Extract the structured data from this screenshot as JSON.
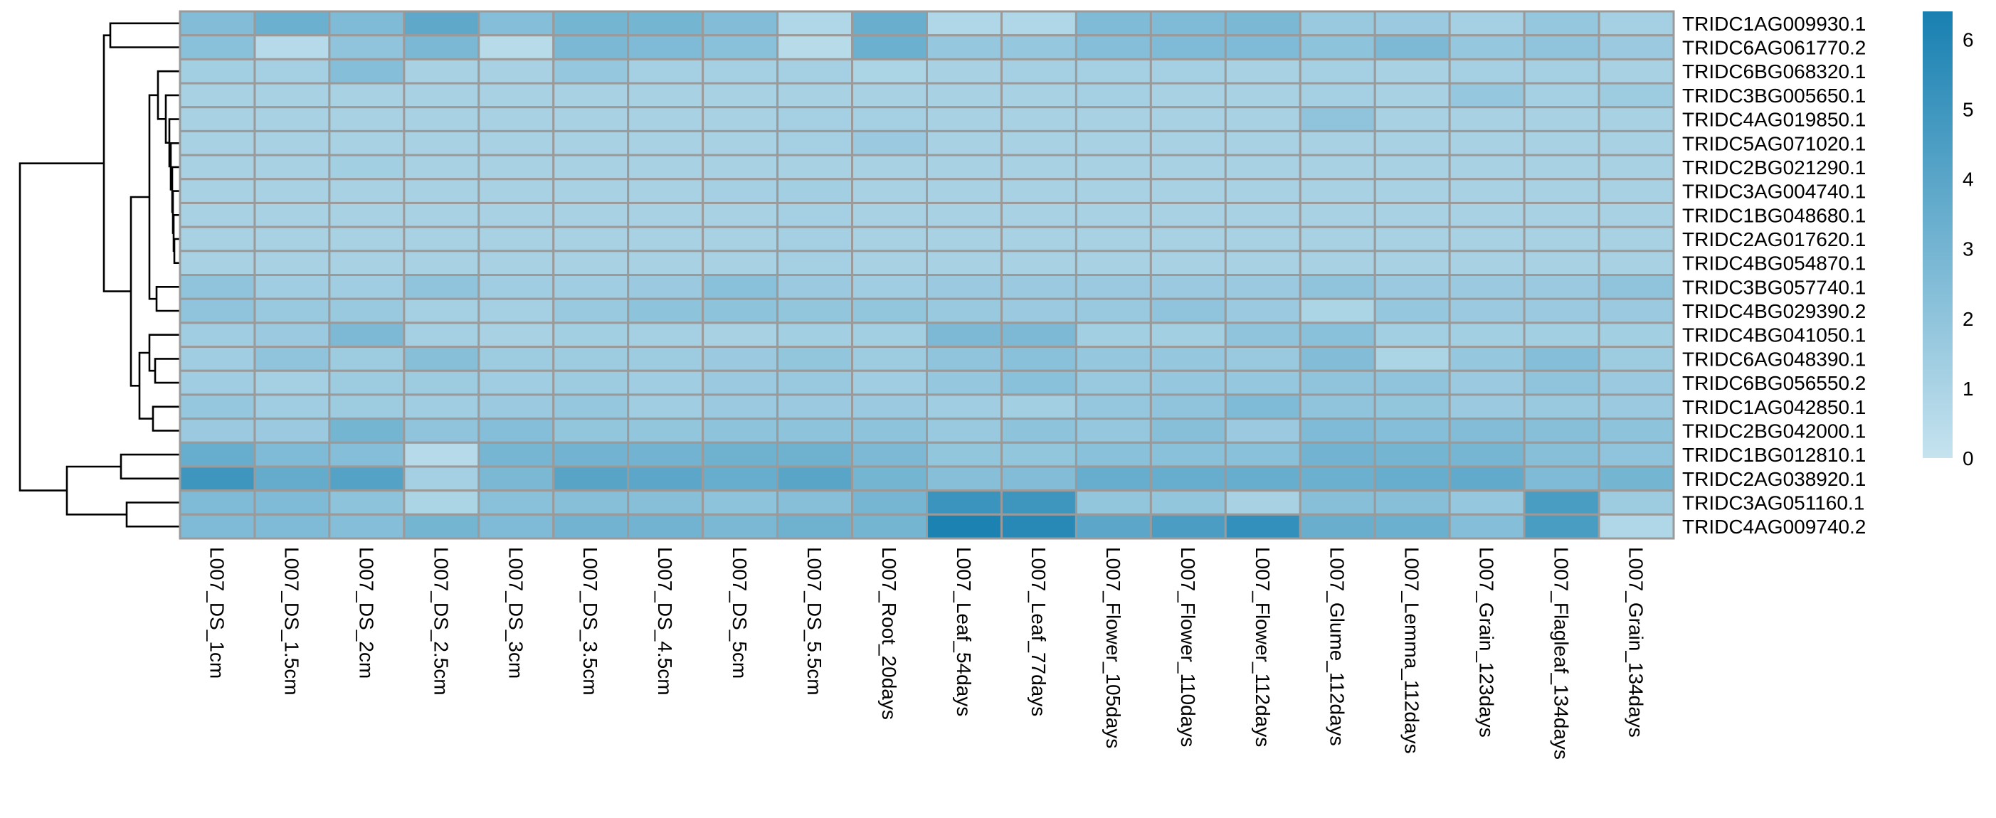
{
  "chart_data": {
    "type": "heatmap",
    "title": "",
    "xlabel": "",
    "ylabel": "",
    "colorscale": {
      "min": 0,
      "max": 6.4,
      "low": "#c6e3ef",
      "high": "#1880b1",
      "ticks": [
        0,
        1,
        2,
        3,
        4,
        5,
        6
      ]
    },
    "rows": [
      "TRIDC1AG009930.1",
      "TRIDC6AG061770.2",
      "TRIDC6BG068320.1",
      "TRIDC3BG005650.1",
      "TRIDC4AG019850.1",
      "TRIDC5AG071020.1",
      "TRIDC2BG021290.1",
      "TRIDC3AG004740.1",
      "TRIDC1BG048680.1",
      "TRIDC2AG017620.1",
      "TRIDC4BG054870.1",
      "TRIDC3BG057740.1",
      "TRIDC4BG029390.2",
      "TRIDC4BG041050.1",
      "TRIDC6AG048390.1",
      "TRIDC6BG056550.2",
      "TRIDC1AG042850.1",
      "TRIDC2BG042000.1",
      "TRIDC1BG012810.1",
      "TRIDC2AG038920.1",
      "TRIDC3AG051160.1",
      "TRIDC4AG009740.2"
    ],
    "columns": [
      "L007_DS_1cm",
      "L007_DS_1.5cm",
      "L007_DS_2cm",
      "L007_DS_2.5cm",
      "L007_DS_3cm",
      "L007_DS_3.5cm",
      "L007_DS_4.5cm",
      "L007_DS_5cm",
      "L007_DS_5.5cm",
      "L007_Root_20days",
      "L007_Leaf_54days",
      "L007_Leaf_77days",
      "L007_Flower_105days",
      "L007_Flower_110days",
      "L007_Flower_112days",
      "L007_Glume_112days",
      "L007_Lemma_112days",
      "L007_Grain_123days",
      "L007_Flagleaf_134days",
      "L007_Grain_134days"
    ],
    "values": [
      [
        2.5,
        3.3,
        2.6,
        3.8,
        2.4,
        3.0,
        3.0,
        2.5,
        0.8,
        3.4,
        0.8,
        0.8,
        2.6,
        2.6,
        2.8,
        1.7,
        1.6,
        1.2,
        1.8,
        1.2
      ],
      [
        2.2,
        0.6,
        2.0,
        2.8,
        0.5,
        2.8,
        2.6,
        2.2,
        0.5,
        3.3,
        1.8,
        1.8,
        2.4,
        2.6,
        2.6,
        2.1,
        2.7,
        1.8,
        2.0,
        1.6
      ],
      [
        1.3,
        1.2,
        2.4,
        1.1,
        1.1,
        1.8,
        1.2,
        1.2,
        1.2,
        1.0,
        1.1,
        1.2,
        1.2,
        1.2,
        1.1,
        1.2,
        1.1,
        1.2,
        1.2,
        1.1
      ],
      [
        1.1,
        1.1,
        1.1,
        1.1,
        1.1,
        1.1,
        1.1,
        1.1,
        1.1,
        1.1,
        1.1,
        1.1,
        1.2,
        1.1,
        1.1,
        1.2,
        1.1,
        1.8,
        1.2,
        1.5
      ],
      [
        1.1,
        1.1,
        1.1,
        1.1,
        1.1,
        1.1,
        1.1,
        1.1,
        1.2,
        1.2,
        1.1,
        1.1,
        1.1,
        1.1,
        1.1,
        2.0,
        1.1,
        1.1,
        1.1,
        1.1
      ],
      [
        1.1,
        1.1,
        1.1,
        1.1,
        1.1,
        1.1,
        1.1,
        1.1,
        1.2,
        1.6,
        1.1,
        1.1,
        1.1,
        1.1,
        1.1,
        1.1,
        1.1,
        1.1,
        1.1,
        1.1
      ],
      [
        1.1,
        1.1,
        1.3,
        1.1,
        1.1,
        1.1,
        1.1,
        1.1,
        1.1,
        1.1,
        1.1,
        1.1,
        1.1,
        1.1,
        1.1,
        1.1,
        1.1,
        1.1,
        1.1,
        1.1
      ],
      [
        1.1,
        1.1,
        1.1,
        1.1,
        1.1,
        1.1,
        1.1,
        1.2,
        1.3,
        1.1,
        1.1,
        1.1,
        1.1,
        1.1,
        1.1,
        1.1,
        1.1,
        1.1,
        1.1,
        1.1
      ],
      [
        1.1,
        1.1,
        1.1,
        1.1,
        1.1,
        1.1,
        1.1,
        1.1,
        1.2,
        1.1,
        1.1,
        1.1,
        1.1,
        1.1,
        1.1,
        1.1,
        1.1,
        1.1,
        1.1,
        1.1
      ],
      [
        1.1,
        1.1,
        1.1,
        1.1,
        1.1,
        1.1,
        1.1,
        1.1,
        1.2,
        1.1,
        1.1,
        1.1,
        1.1,
        1.1,
        1.1,
        1.1,
        1.1,
        1.1,
        1.1,
        1.1
      ],
      [
        1.1,
        1.1,
        1.1,
        1.1,
        1.1,
        1.1,
        1.1,
        1.1,
        1.2,
        1.1,
        1.1,
        1.1,
        1.1,
        1.1,
        1.1,
        1.1,
        1.1,
        1.1,
        1.1,
        1.1
      ],
      [
        2.0,
        1.4,
        1.4,
        2.0,
        1.4,
        1.4,
        1.6,
        2.2,
        1.6,
        1.4,
        1.6,
        1.6,
        1.6,
        1.6,
        1.6,
        2.0,
        1.6,
        1.6,
        1.6,
        2.0
      ],
      [
        2.0,
        1.7,
        1.7,
        1.2,
        1.2,
        1.7,
        2.1,
        2.1,
        1.9,
        1.9,
        1.7,
        1.6,
        1.7,
        2.0,
        1.6,
        1.0,
        1.8,
        1.6,
        1.6,
        1.6
      ],
      [
        1.4,
        1.6,
        2.7,
        1.2,
        1.1,
        1.3,
        1.2,
        1.1,
        1.3,
        1.3,
        2.7,
        2.7,
        1.3,
        1.3,
        2.0,
        2.2,
        1.3,
        1.3,
        1.3,
        1.3
      ],
      [
        1.4,
        2.0,
        1.5,
        2.3,
        1.5,
        1.5,
        1.5,
        1.6,
        1.9,
        1.5,
        2.0,
        2.2,
        1.8,
        1.8,
        1.7,
        2.5,
        1.0,
        1.8,
        2.4,
        1.5
      ],
      [
        1.4,
        1.2,
        1.5,
        1.5,
        1.4,
        1.5,
        1.4,
        1.6,
        1.7,
        1.4,
        1.8,
        2.2,
        1.7,
        1.8,
        1.8,
        2.0,
        2.0,
        1.6,
        2.0,
        1.6
      ],
      [
        1.8,
        1.4,
        1.5,
        1.4,
        1.6,
        1.8,
        1.4,
        1.6,
        1.6,
        1.6,
        1.4,
        1.3,
        1.8,
        2.0,
        2.6,
        2.0,
        1.9,
        1.6,
        1.7,
        1.6
      ],
      [
        1.6,
        1.6,
        3.0,
        2.0,
        2.4,
        1.9,
        1.9,
        2.1,
        2.1,
        2.1,
        1.7,
        2.1,
        1.8,
        2.3,
        1.6,
        2.6,
        2.4,
        2.5,
        2.3,
        2.1
      ],
      [
        3.5,
        2.6,
        2.4,
        0.6,
        2.9,
        3.1,
        3.1,
        3.2,
        3.2,
        2.7,
        1.9,
        1.9,
        2.2,
        2.2,
        2.2,
        3.1,
        3.0,
        2.9,
        2.3,
        2.0
      ],
      [
        5.0,
        3.6,
        4.2,
        1.2,
        2.8,
        4.1,
        3.9,
        3.5,
        4.0,
        3.0,
        2.3,
        2.5,
        3.5,
        3.5,
        3.5,
        3.3,
        3.5,
        3.7,
        2.6,
        3.0
      ],
      [
        2.6,
        2.6,
        2.1,
        1.0,
        2.2,
        2.3,
        2.3,
        2.1,
        2.3,
        2.9,
        5.1,
        5.0,
        1.9,
        1.9,
        1.1,
        2.3,
        2.3,
        1.8,
        4.6,
        1.5
      ],
      [
        2.6,
        2.6,
        2.4,
        3.0,
        2.6,
        3.1,
        3.1,
        2.8,
        3.2,
        3.0,
        6.3,
        5.8,
        3.9,
        4.5,
        5.4,
        3.4,
        3.3,
        2.4,
        4.6,
        0.8
      ]
    ]
  }
}
